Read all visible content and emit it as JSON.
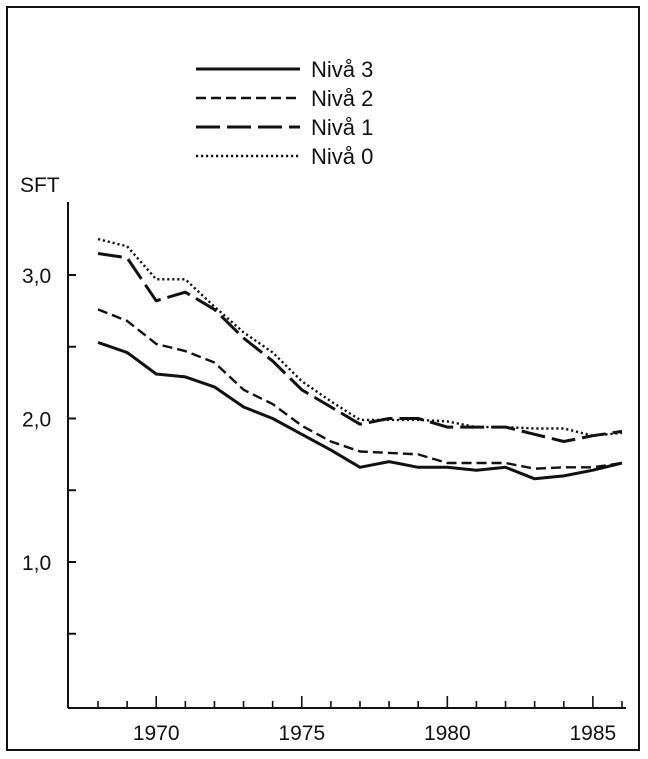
{
  "chart_data": {
    "type": "line",
    "title": "",
    "xlabel": "",
    "ylabel": "SFT",
    "xlim": [
      1967,
      1986
    ],
    "ylim": [
      0.3,
      3.5
    ],
    "x_ticks": [
      1970,
      1975,
      1980,
      1985
    ],
    "x_tick_labels": [
      "1970",
      "1975",
      "1980",
      "1985"
    ],
    "y_ticks": [
      1.0,
      2.0,
      3.0
    ],
    "y_tick_labels": [
      "1,0",
      "2,0",
      "3,0"
    ],
    "legend_position": "top-center",
    "grid": false,
    "x": [
      1968,
      1969,
      1970,
      1971,
      1972,
      1973,
      1974,
      1975,
      1976,
      1977,
      1978,
      1979,
      1980,
      1981,
      1982,
      1983,
      1984,
      1985,
      1986
    ],
    "series": [
      {
        "name": "Nivå 3",
        "style": "solid",
        "color": "#111111",
        "values": [
          2.53,
          2.46,
          2.31,
          2.29,
          2.22,
          2.08,
          2.0,
          1.89,
          1.78,
          1.66,
          1.7,
          1.66,
          1.66,
          1.64,
          1.66,
          1.58,
          1.6,
          1.64,
          1.69
        ]
      },
      {
        "name": "Nivå 2",
        "style": "dashed",
        "color": "#111111",
        "values": [
          2.76,
          2.68,
          2.52,
          2.47,
          2.39,
          2.2,
          2.1,
          1.95,
          1.84,
          1.77,
          1.76,
          1.75,
          1.69,
          1.69,
          1.69,
          1.65,
          1.66,
          1.66,
          1.69
        ]
      },
      {
        "name": "Nivå 1",
        "style": "long-dash",
        "color": "#111111",
        "values": [
          3.15,
          3.12,
          2.82,
          2.88,
          2.76,
          2.56,
          2.4,
          2.2,
          2.08,
          1.96,
          2.0,
          2.0,
          1.94,
          1.94,
          1.94,
          1.89,
          1.84,
          1.88,
          1.91
        ]
      },
      {
        "name": "Nivå 0",
        "style": "dotted",
        "color": "#111111",
        "values": [
          3.25,
          3.2,
          2.97,
          2.97,
          2.78,
          2.6,
          2.46,
          2.26,
          2.12,
          1.99,
          1.99,
          1.99,
          1.98,
          1.94,
          1.94,
          1.93,
          1.93,
          1.88,
          1.9
        ]
      }
    ]
  }
}
